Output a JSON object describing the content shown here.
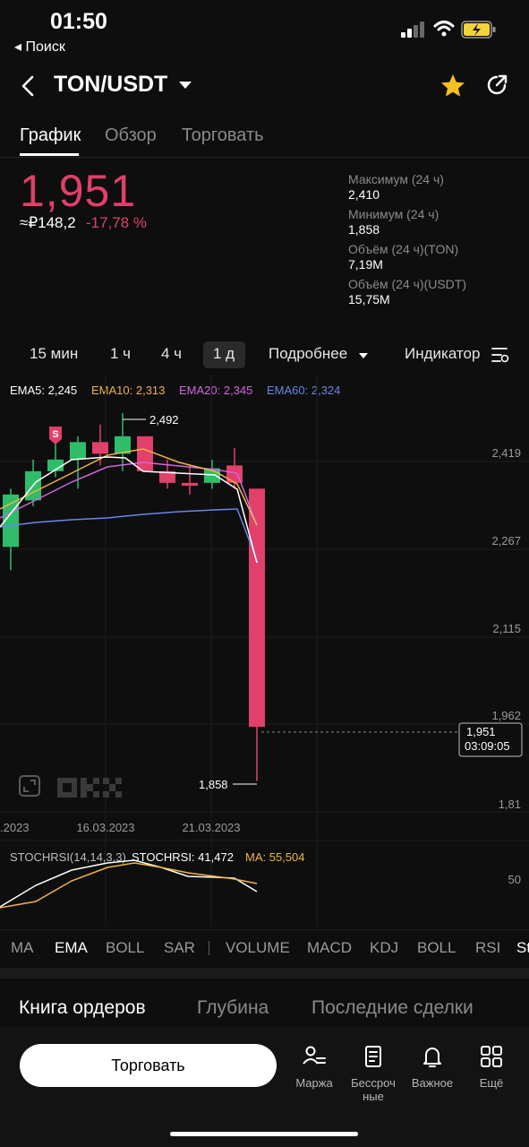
{
  "status_bar": {
    "time": "01:50",
    "back_app": "◂ Поиск"
  },
  "header": {
    "pair": "TON/USDT"
  },
  "tabs": [
    {
      "label": "График",
      "active": true
    },
    {
      "label": "Обзор",
      "active": false
    },
    {
      "label": "Торговать",
      "active": false
    }
  ],
  "price": {
    "last": "1,951",
    "rub": "≈₽148,2",
    "change": "-17,78 %"
  },
  "stats": [
    {
      "label": "Максимум (24 ч)",
      "value": "2,410"
    },
    {
      "label": "Минимум (24 ч)",
      "value": "1,858"
    },
    {
      "label": "Объём (24 ч)(TON)",
      "value": "7,19M"
    },
    {
      "label": "Объём (24 ч)(USDT)",
      "value": "15,75M"
    }
  ],
  "intervals": {
    "items": [
      "15 мин",
      "1 ч",
      "4 ч",
      "1 д"
    ],
    "active": "1 д",
    "more": "Подробнее",
    "indicators": "Индикатор"
  },
  "ema_legend": [
    {
      "label": "EMA5: 2,245",
      "color": "#ffffff"
    },
    {
      "label": "EMA10: 2,313",
      "color": "#f0b34a"
    },
    {
      "label": "EMA20: 2,345",
      "color": "#d066e0"
    },
    {
      "label": "EMA60: 2,324",
      "color": "#6a86e8"
    }
  ],
  "chart_data": {
    "type": "candlestick",
    "y_ticks": [
      "2,419",
      "2,267",
      "2,115",
      "1,962",
      "1,81"
    ],
    "x_ticks": [
      ".2023",
      "16.03.2023",
      "21.03.2023"
    ],
    "high_label": "2,492",
    "low_label": "1,858",
    "current_price": "1,951",
    "countdown": "03:09:05",
    "candles": [
      {
        "open": 2.26,
        "high": 2.36,
        "low": 2.22,
        "close": 2.35
      },
      {
        "open": 2.34,
        "high": 2.41,
        "low": 2.33,
        "close": 2.39
      },
      {
        "open": 2.39,
        "high": 2.46,
        "low": 2.38,
        "close": 2.41
      },
      {
        "open": 2.41,
        "high": 2.45,
        "low": 2.36,
        "close": 2.44
      },
      {
        "open": 2.44,
        "high": 2.47,
        "low": 2.4,
        "close": 2.42
      },
      {
        "open": 2.42,
        "high": 2.49,
        "low": 2.39,
        "close": 2.45
      },
      {
        "open": 2.45,
        "high": 2.45,
        "low": 2.39,
        "close": 2.39
      },
      {
        "open": 2.39,
        "high": 2.41,
        "low": 2.36,
        "close": 2.37
      },
      {
        "open": 2.37,
        "high": 2.4,
        "low": 2.35,
        "close": 2.365
      },
      {
        "open": 2.37,
        "high": 2.41,
        "low": 2.36,
        "close": 2.395
      },
      {
        "open": 2.4,
        "high": 2.43,
        "low": 2.36,
        "close": 2.37
      },
      {
        "open": 2.36,
        "high": 2.36,
        "low": 1.858,
        "close": 1.951
      }
    ],
    "stoch_legend": {
      "name": "STOCHRSI(14,14,3,3)",
      "value": "STOCHRSI: 41,472",
      "ma": "MA: 55,504"
    },
    "stoch_tick": "50"
  },
  "indicator_tabs": [
    "MA",
    "EMA",
    "BOLL",
    "SAR",
    "VOLUME",
    "MACD",
    "KDJ",
    "BOLL",
    "RSI",
    "St"
  ],
  "orderbook_tabs": [
    "Книга ордеров",
    "Глубина",
    "Последние сделки"
  ],
  "bottom": {
    "trade": "Торговать",
    "nav": [
      {
        "label": "Маржа",
        "icon": "margin-icon"
      },
      {
        "label": "Бессроч ные",
        "icon": "perpetual-icon"
      },
      {
        "label": "Важное",
        "icon": "bell-icon"
      },
      {
        "label": "Ещё",
        "icon": "grid-icon"
      }
    ]
  },
  "colors": {
    "up": "#2fbd6a",
    "down": "#e0406a",
    "bg": "#0e0e0e"
  }
}
